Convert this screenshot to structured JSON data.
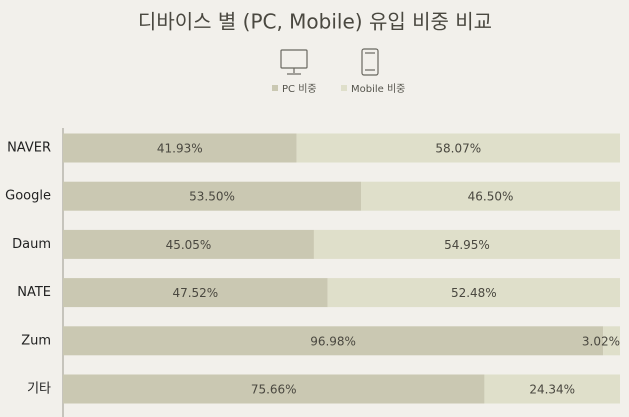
{
  "chart_data": {
    "type": "stacked-barh",
    "title": "디바이스 별 (PC, Mobile) 유입 비중 비교",
    "categories": [
      "NAVER",
      "Google",
      "Daum",
      "NATE",
      "Zum",
      "기타"
    ],
    "xlim": [
      0,
      100
    ],
    "series": [
      {
        "name": "PC 비중",
        "color": "#cac8b2",
        "values": [
          41.93,
          53.5,
          45.05,
          47.52,
          96.98,
          75.66
        ],
        "value_labels": [
          "41.93%",
          "53.50%",
          "45.05%",
          "47.52%",
          "96.98%",
          "75.66%"
        ]
      },
      {
        "name": "Mobile 비중",
        "color": "#dfdfca",
        "values": [
          58.07,
          46.5,
          54.95,
          52.48,
          3.02,
          24.34
        ],
        "value_labels": [
          "58.07%",
          "46.50%",
          "54.95%",
          "52.48%",
          "3.02%",
          "24.34%"
        ]
      }
    ]
  }
}
